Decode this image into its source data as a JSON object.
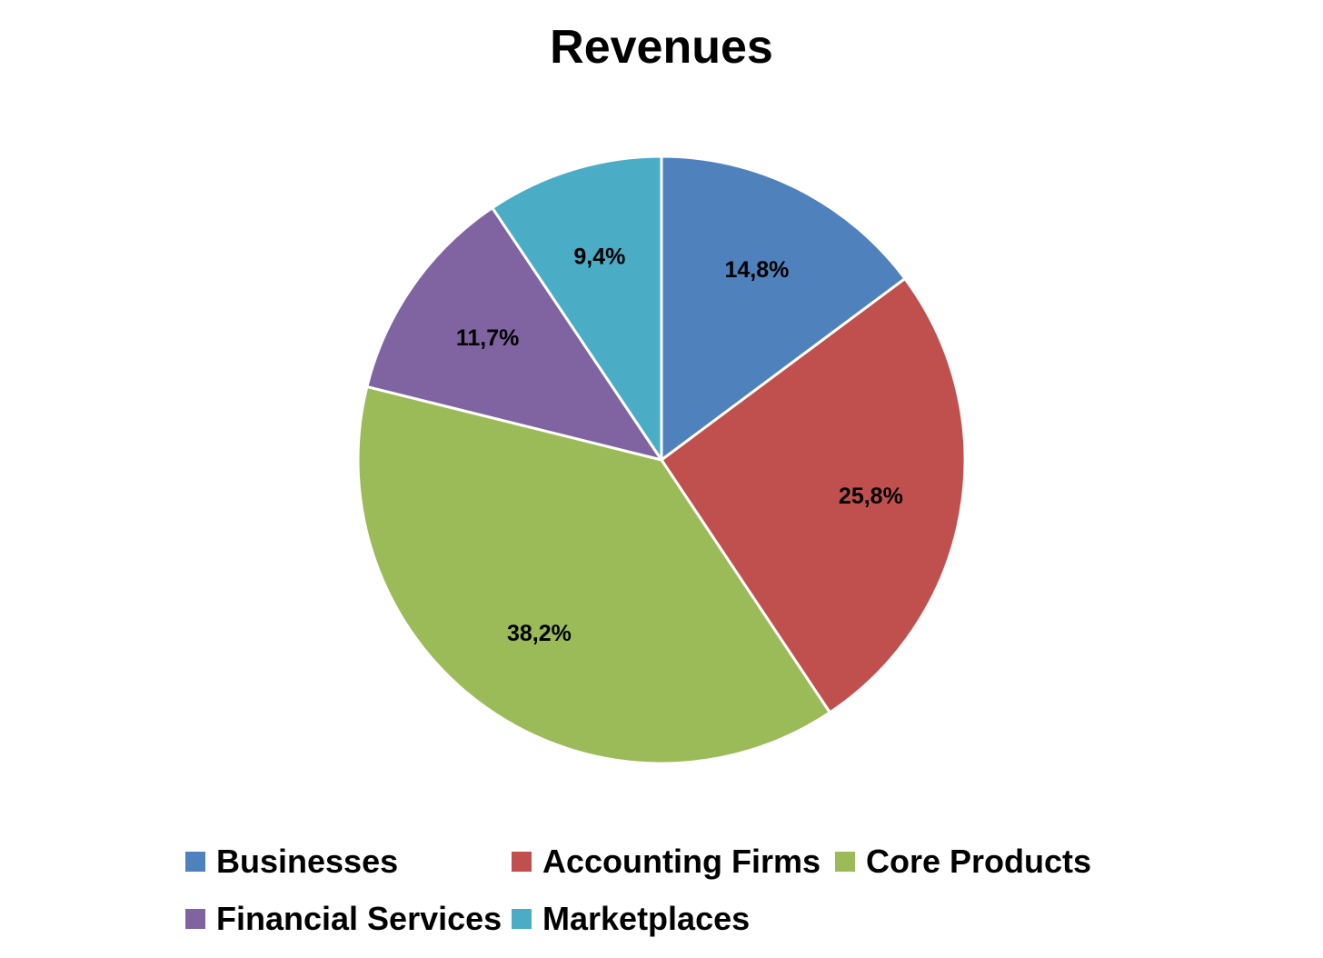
{
  "chart_data": {
    "type": "pie",
    "title": "Revenues",
    "categories": [
      "Businesses",
      "Accounting Firms",
      "Core Products",
      "Financial Services",
      "Marketplaces"
    ],
    "values": [
      14.8,
      25.8,
      38.2,
      11.7,
      9.4
    ],
    "labels": [
      "14,8%",
      "25,8%",
      "38,2%",
      "11,7%",
      "9,4%"
    ],
    "colors": [
      "#4F81BD",
      "#C0504D",
      "#9BBB59",
      "#8064A2",
      "#4BACC6"
    ],
    "start": "12 o'clock",
    "direction": "clockwise",
    "legend_position": "bottom"
  }
}
